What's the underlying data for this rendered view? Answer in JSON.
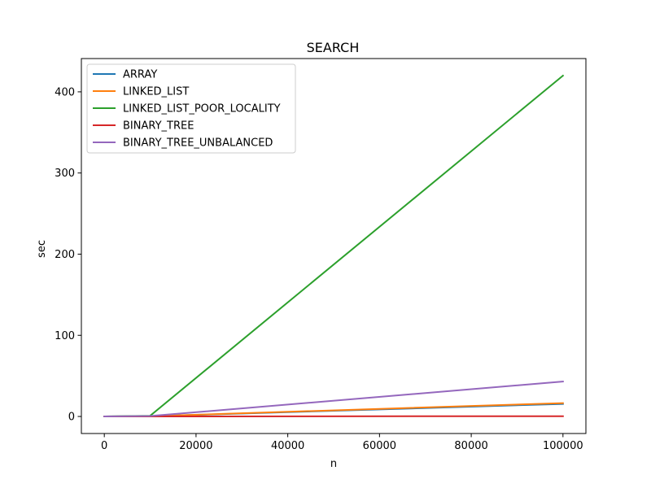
{
  "chart_data": {
    "type": "line",
    "title": "SEARCH",
    "xlabel": "n",
    "ylabel": "sec",
    "xlim": [
      -5000,
      105000
    ],
    "ylim": [
      -21,
      441
    ],
    "x_ticks": [
      0,
      20000,
      40000,
      60000,
      80000,
      100000
    ],
    "y_ticks": [
      0,
      100,
      200,
      300,
      400
    ],
    "grid": false,
    "legend_position": "upper-left",
    "x": [
      0,
      10000,
      100000
    ],
    "series": [
      {
        "name": "ARRAY",
        "color": "#1f77b4",
        "values": [
          0,
          0.2,
          15.5
        ]
      },
      {
        "name": "LINKED_LIST",
        "color": "#ff7f0e",
        "values": [
          0,
          0.3,
          16.5
        ]
      },
      {
        "name": "LINKED_LIST_POOR_LOCALITY",
        "color": "#2ca02c",
        "values": [
          0,
          0.8,
          420
        ]
      },
      {
        "name": "BINARY_TREE",
        "color": "#d62728",
        "values": [
          0,
          0.05,
          0.3
        ]
      },
      {
        "name": "BINARY_TREE_UNBALANCED",
        "color": "#9467bd",
        "values": [
          0,
          0.5,
          43
        ]
      }
    ]
  }
}
